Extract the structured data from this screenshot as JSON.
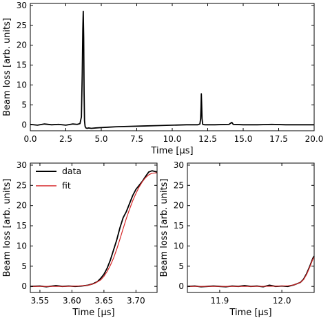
{
  "chart_data": [
    {
      "id": "top",
      "type": "line",
      "xlabel": "Time [μs]",
      "ylabel": "Beam loss [arb. units]",
      "xlim": [
        0.0,
        20.0
      ],
      "ylim": [
        -1.5,
        30.5
      ],
      "xticks": [
        "0.0",
        "2.5",
        "5.0",
        "7.5",
        "10.0",
        "12.5",
        "15.0",
        "17.5",
        "20.0"
      ],
      "yticks": [
        "0",
        "5",
        "10",
        "15",
        "20",
        "25",
        "30"
      ],
      "grid": false,
      "series": [
        {
          "color": "#000000",
          "x": [
            0.0,
            0.5,
            1.0,
            1.5,
            2.0,
            2.5,
            3.0,
            3.3,
            3.5,
            3.6,
            3.66,
            3.7,
            3.73,
            3.76,
            3.79,
            3.82,
            3.86,
            3.92,
            4.0,
            4.1,
            4.3,
            4.6,
            5.0,
            5.5,
            6.0,
            7.0,
            8.0,
            9.0,
            10.0,
            11.0,
            11.8,
            11.95,
            12.0,
            12.03,
            12.05,
            12.07,
            12.1,
            12.15,
            12.3,
            13.0,
            14.0,
            14.2,
            14.3,
            15.0,
            16.0,
            17.0,
            18.0,
            19.0,
            20.0
          ],
          "y": [
            0.1,
            -0.1,
            0.2,
            0.0,
            0.1,
            -0.1,
            0.2,
            0.1,
            0.3,
            2.0,
            13.0,
            24.0,
            28.5,
            22.0,
            8.0,
            1.0,
            -0.4,
            -0.8,
            -0.9,
            -0.8,
            -0.9,
            -0.8,
            -0.7,
            -0.6,
            -0.5,
            -0.4,
            -0.3,
            -0.2,
            -0.1,
            0.0,
            0.0,
            0.2,
            1.5,
            4.5,
            7.8,
            5.5,
            1.5,
            0.1,
            0.0,
            0.0,
            0.1,
            0.6,
            0.1,
            0.0,
            0.0,
            0.1,
            0.0,
            0.0,
            0.0
          ]
        }
      ]
    },
    {
      "id": "bottom-left",
      "type": "line",
      "xlabel": "Time [μs]",
      "ylabel": "Beam loss [arb. units]",
      "xlim": [
        3.535,
        3.733
      ],
      "ylim": [
        -1.5,
        30.5
      ],
      "xticks": [
        "3.55",
        "3.60",
        "3.65",
        "3.70"
      ],
      "xtick_values": [
        3.55,
        3.6,
        3.65,
        3.7
      ],
      "yticks": [
        "0",
        "5",
        "10",
        "15",
        "20",
        "25",
        "30"
      ],
      "grid": false,
      "legend": {
        "placement": "top-left"
      },
      "series": [
        {
          "name": "data",
          "color": "#000000",
          "x": [
            3.535,
            3.55,
            3.56,
            3.575,
            3.585,
            3.595,
            3.605,
            3.615,
            3.625,
            3.632,
            3.64,
            3.645,
            3.65,
            3.655,
            3.66,
            3.665,
            3.67,
            3.675,
            3.68,
            3.685,
            3.69,
            3.695,
            3.7,
            3.705,
            3.71,
            3.715,
            3.72,
            3.725,
            3.733
          ],
          "y": [
            0.0,
            0.1,
            -0.1,
            0.2,
            0.0,
            0.1,
            0.0,
            0.1,
            0.3,
            0.6,
            1.2,
            2.0,
            3.0,
            4.5,
            6.5,
            9.0,
            11.5,
            14.5,
            17.0,
            18.5,
            20.5,
            22.5,
            24.0,
            25.0,
            26.0,
            27.2,
            28.3,
            28.6,
            28.3
          ]
        },
        {
          "name": "fit",
          "color": "#d62728",
          "x": [
            3.535,
            3.56,
            3.59,
            3.61,
            3.625,
            3.635,
            3.645,
            3.65,
            3.655,
            3.66,
            3.665,
            3.67,
            3.675,
            3.68,
            3.685,
            3.69,
            3.695,
            3.7,
            3.705,
            3.71,
            3.715,
            3.72,
            3.725,
            3.733
          ],
          "y": [
            0.0,
            0.0,
            0.0,
            0.1,
            0.3,
            0.7,
            1.6,
            2.5,
            3.7,
            5.2,
            7.0,
            9.2,
            11.7,
            14.3,
            16.8,
            19.1,
            21.2,
            23.0,
            24.6,
            25.9,
            26.9,
            27.6,
            28.0,
            28.1
          ]
        }
      ]
    },
    {
      "id": "bottom-right",
      "type": "line",
      "xlabel": "Time [μs]",
      "ylabel": "Beam loss [arb. units]",
      "xlim": [
        11.848,
        12.052
      ],
      "ylim": [
        -1.5,
        30.5
      ],
      "xticks": [
        "11.9",
        "12.0"
      ],
      "xtick_values": [
        11.9,
        12.0
      ],
      "yticks": [
        "0",
        "5",
        "10",
        "15",
        "20",
        "25",
        "30"
      ],
      "grid": false,
      "series": [
        {
          "name": "data",
          "color": "#000000",
          "x": [
            11.848,
            11.86,
            11.87,
            11.88,
            11.89,
            11.9,
            11.91,
            11.92,
            11.93,
            11.94,
            11.95,
            11.96,
            11.97,
            11.98,
            11.99,
            12.0,
            12.01,
            12.02,
            12.03,
            12.035,
            12.04,
            12.045,
            12.05,
            12.052
          ],
          "y": [
            0.0,
            0.1,
            -0.1,
            0.0,
            0.1,
            0.0,
            -0.1,
            0.1,
            0.0,
            0.2,
            0.0,
            0.1,
            -0.1,
            0.3,
            0.0,
            0.1,
            0.0,
            0.4,
            1.0,
            1.8,
            3.2,
            5.0,
            7.0,
            7.5
          ]
        },
        {
          "name": "fit",
          "color": "#d62728",
          "x": [
            11.848,
            11.9,
            11.95,
            11.99,
            12.01,
            12.02,
            12.03,
            12.035,
            12.04,
            12.045,
            12.05,
            12.052
          ],
          "y": [
            0.0,
            0.0,
            0.0,
            0.05,
            0.15,
            0.4,
            1.0,
            1.7,
            3.0,
            4.8,
            6.8,
            7.3
          ]
        }
      ]
    }
  ]
}
